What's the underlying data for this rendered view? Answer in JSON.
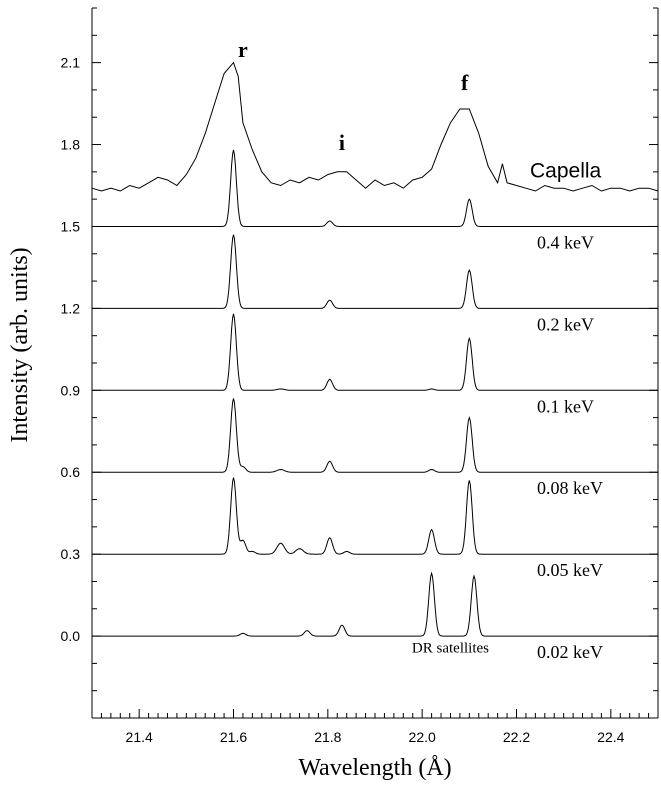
{
  "chart_data": {
    "type": "line",
    "xlabel": "Wavelength (Å)",
    "ylabel": "Intensity (arb. units)",
    "xlim": [
      21.3,
      22.5
    ],
    "ylim": [
      -0.3,
      2.3
    ],
    "xticks": [
      21.4,
      21.6,
      21.8,
      22.0,
      22.2,
      22.4
    ],
    "xtick_labels": [
      "21.4",
      "21.6",
      "21.8",
      "22.0",
      "22.2",
      "22.4"
    ],
    "yticks": [
      0.0,
      0.3,
      0.6,
      0.9,
      1.2,
      1.5,
      1.8,
      2.1
    ],
    "ytick_labels": [
      "0.0",
      "0.3",
      "0.6",
      "0.9",
      "1.2",
      "1.5",
      "1.8",
      "2.1"
    ],
    "grid": false,
    "peak_annotations": [
      {
        "text": "r",
        "x": 21.62,
        "y": 2.12
      },
      {
        "text": "i",
        "x": 21.83,
        "y": 1.78
      },
      {
        "text": "f",
        "x": 22.09,
        "y": 2.0
      }
    ],
    "note": {
      "text": "DR satellites",
      "x": 22.06,
      "y": -0.06
    },
    "capella": {
      "name": "Capella",
      "x": [
        21.3,
        21.32,
        21.34,
        21.36,
        21.38,
        21.4,
        21.42,
        21.44,
        21.46,
        21.48,
        21.5,
        21.52,
        21.54,
        21.56,
        21.58,
        21.6,
        21.61,
        21.62,
        21.64,
        21.66,
        21.68,
        21.7,
        21.72,
        21.74,
        21.76,
        21.78,
        21.8,
        21.82,
        21.84,
        21.86,
        21.88,
        21.9,
        21.92,
        21.94,
        21.96,
        21.98,
        22.0,
        22.02,
        22.04,
        22.06,
        22.08,
        22.1,
        22.12,
        22.14,
        22.16,
        22.17,
        22.18,
        22.2,
        22.22,
        22.24,
        22.26,
        22.28,
        22.3,
        22.32,
        22.34,
        22.36,
        22.38,
        22.4,
        22.42,
        22.44,
        22.46,
        22.48,
        22.5
      ],
      "y": [
        1.64,
        1.63,
        1.64,
        1.63,
        1.65,
        1.64,
        1.66,
        1.68,
        1.67,
        1.65,
        1.69,
        1.75,
        1.84,
        1.95,
        2.06,
        2.1,
        2.05,
        1.88,
        1.78,
        1.7,
        1.66,
        1.65,
        1.67,
        1.66,
        1.68,
        1.67,
        1.69,
        1.7,
        1.7,
        1.67,
        1.64,
        1.67,
        1.65,
        1.66,
        1.64,
        1.67,
        1.68,
        1.71,
        1.8,
        1.88,
        1.93,
        1.93,
        1.84,
        1.72,
        1.66,
        1.73,
        1.66,
        1.65,
        1.64,
        1.63,
        1.65,
        1.64,
        1.64,
        1.63,
        1.64,
        1.65,
        1.63,
        1.64,
        1.64,
        1.63,
        1.64,
        1.64,
        1.63
      ]
    },
    "series": [
      {
        "name": "0.4 keV",
        "baseline": 1.5,
        "peaks": [
          [
            21.6,
            0.28,
            0.006
          ],
          [
            21.804,
            0.02,
            0.006
          ],
          [
            22.1,
            0.1,
            0.006
          ]
        ]
      },
      {
        "name": "0.2 keV",
        "baseline": 1.2,
        "peaks": [
          [
            21.6,
            0.27,
            0.006
          ],
          [
            21.804,
            0.03,
            0.006
          ],
          [
            22.1,
            0.14,
            0.006
          ]
        ]
      },
      {
        "name": "0.1 keV",
        "baseline": 0.9,
        "peaks": [
          [
            21.6,
            0.28,
            0.006
          ],
          [
            21.804,
            0.04,
            0.006
          ],
          [
            22.1,
            0.19,
            0.006
          ],
          [
            21.7,
            0.005,
            0.008
          ],
          [
            22.02,
            0.005,
            0.006
          ]
        ]
      },
      {
        "name": "0.08 keV",
        "baseline": 0.6,
        "peaks": [
          [
            21.6,
            0.27,
            0.006
          ],
          [
            21.804,
            0.04,
            0.006
          ],
          [
            22.1,
            0.2,
            0.006
          ],
          [
            21.62,
            0.02,
            0.006
          ],
          [
            21.7,
            0.01,
            0.008
          ],
          [
            22.02,
            0.01,
            0.006
          ]
        ]
      },
      {
        "name": "0.05 keV",
        "baseline": 0.3,
        "peaks": [
          [
            21.6,
            0.28,
            0.006
          ],
          [
            21.62,
            0.05,
            0.006
          ],
          [
            21.64,
            0.01,
            0.006
          ],
          [
            21.7,
            0.04,
            0.008
          ],
          [
            21.74,
            0.02,
            0.008
          ],
          [
            21.804,
            0.06,
            0.006
          ],
          [
            21.84,
            0.01,
            0.006
          ],
          [
            22.02,
            0.09,
            0.006
          ],
          [
            22.1,
            0.27,
            0.006
          ]
        ]
      },
      {
        "name": "0.02 keV",
        "baseline": 0.0,
        "peaks": [
          [
            21.62,
            0.01,
            0.006
          ],
          [
            21.756,
            0.02,
            0.006
          ],
          [
            21.83,
            0.04,
            0.006
          ],
          [
            22.02,
            0.23,
            0.006
          ],
          [
            22.11,
            0.22,
            0.006
          ]
        ]
      }
    ]
  }
}
